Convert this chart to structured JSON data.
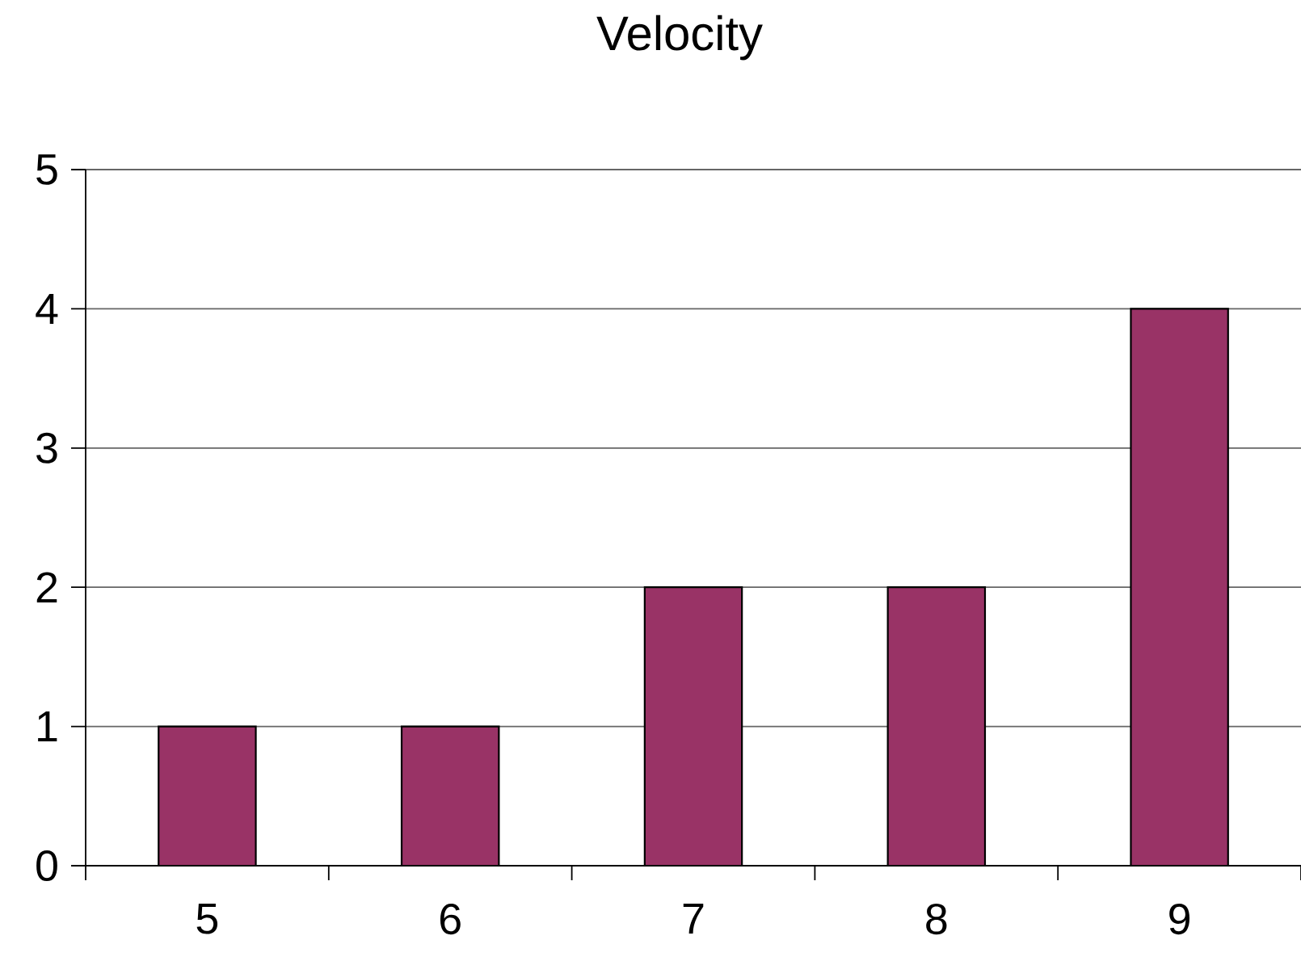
{
  "chart_data": {
    "type": "bar",
    "title": "Velocity",
    "categories": [
      "5",
      "6",
      "7",
      "8",
      "9"
    ],
    "values": [
      1,
      1,
      2,
      2,
      4
    ],
    "color": "#993366",
    "ylim": [
      0,
      5
    ],
    "yticks": [
      0,
      1,
      2,
      3,
      4,
      5
    ],
    "grid": "y"
  }
}
